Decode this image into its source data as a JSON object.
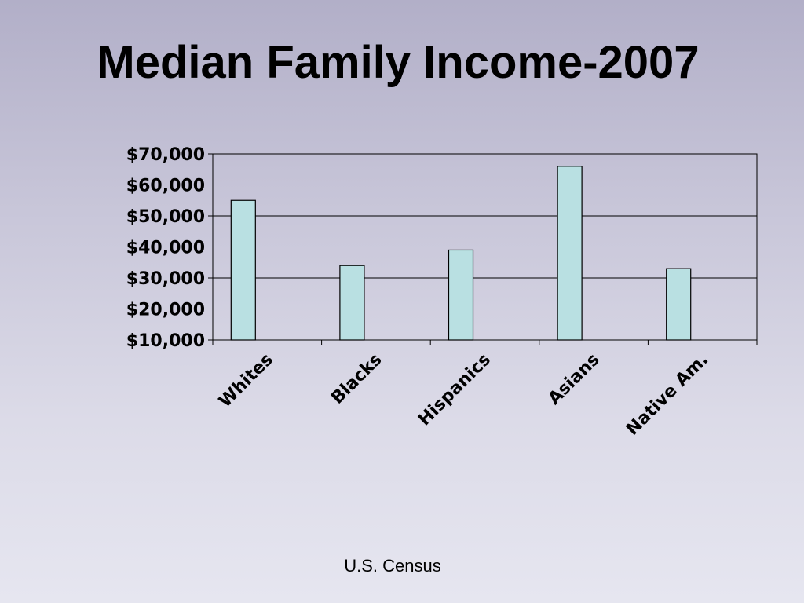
{
  "slide": {
    "title": "Median Family Income-2007",
    "source": "U.S. Census"
  },
  "colors": {
    "bar_fill": "#b9e0e2",
    "bar_stroke": "#000000",
    "grid": "#000000"
  },
  "chart_data": {
    "type": "bar",
    "title": "",
    "xlabel": "",
    "ylabel": "",
    "categories": [
      "Whites",
      "Blacks",
      "Hispanics",
      "Asians",
      "Native Am."
    ],
    "values": [
      55000,
      34000,
      39000,
      66000,
      33000
    ],
    "ylim": [
      10000,
      70000
    ],
    "yticks": [
      70000,
      60000,
      50000,
      40000,
      30000,
      20000,
      10000
    ],
    "ytick_labels": [
      "$70,000",
      "$60,000",
      "$50,000",
      "$40,000",
      "$30,000",
      "$20,000",
      "$10,000"
    ],
    "grid": true,
    "legend": "none"
  }
}
